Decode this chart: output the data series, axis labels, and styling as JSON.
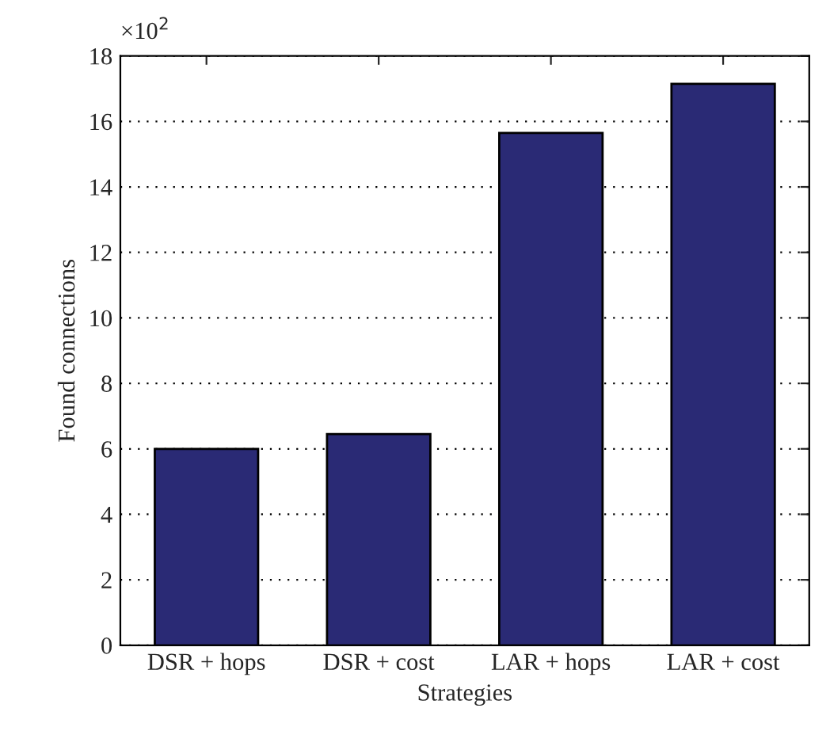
{
  "chart_data": {
    "type": "bar",
    "xlabel": "Strategies",
    "ylabel": "Found connections",
    "annotations": [
      "×10$^{2}$"
    ],
    "categories": [
      "DSR + hops",
      "DSR + cost",
      "LAR + hops",
      "LAR + cost"
    ],
    "values": [
      6.0,
      6.45,
      15.65,
      17.15
    ],
    "color": "#2a2a75",
    "ylim": [
      0,
      18
    ],
    "yticks": [
      0,
      2,
      4,
      6,
      8,
      10,
      12,
      14,
      16,
      18
    ],
    "grid": "y"
  }
}
